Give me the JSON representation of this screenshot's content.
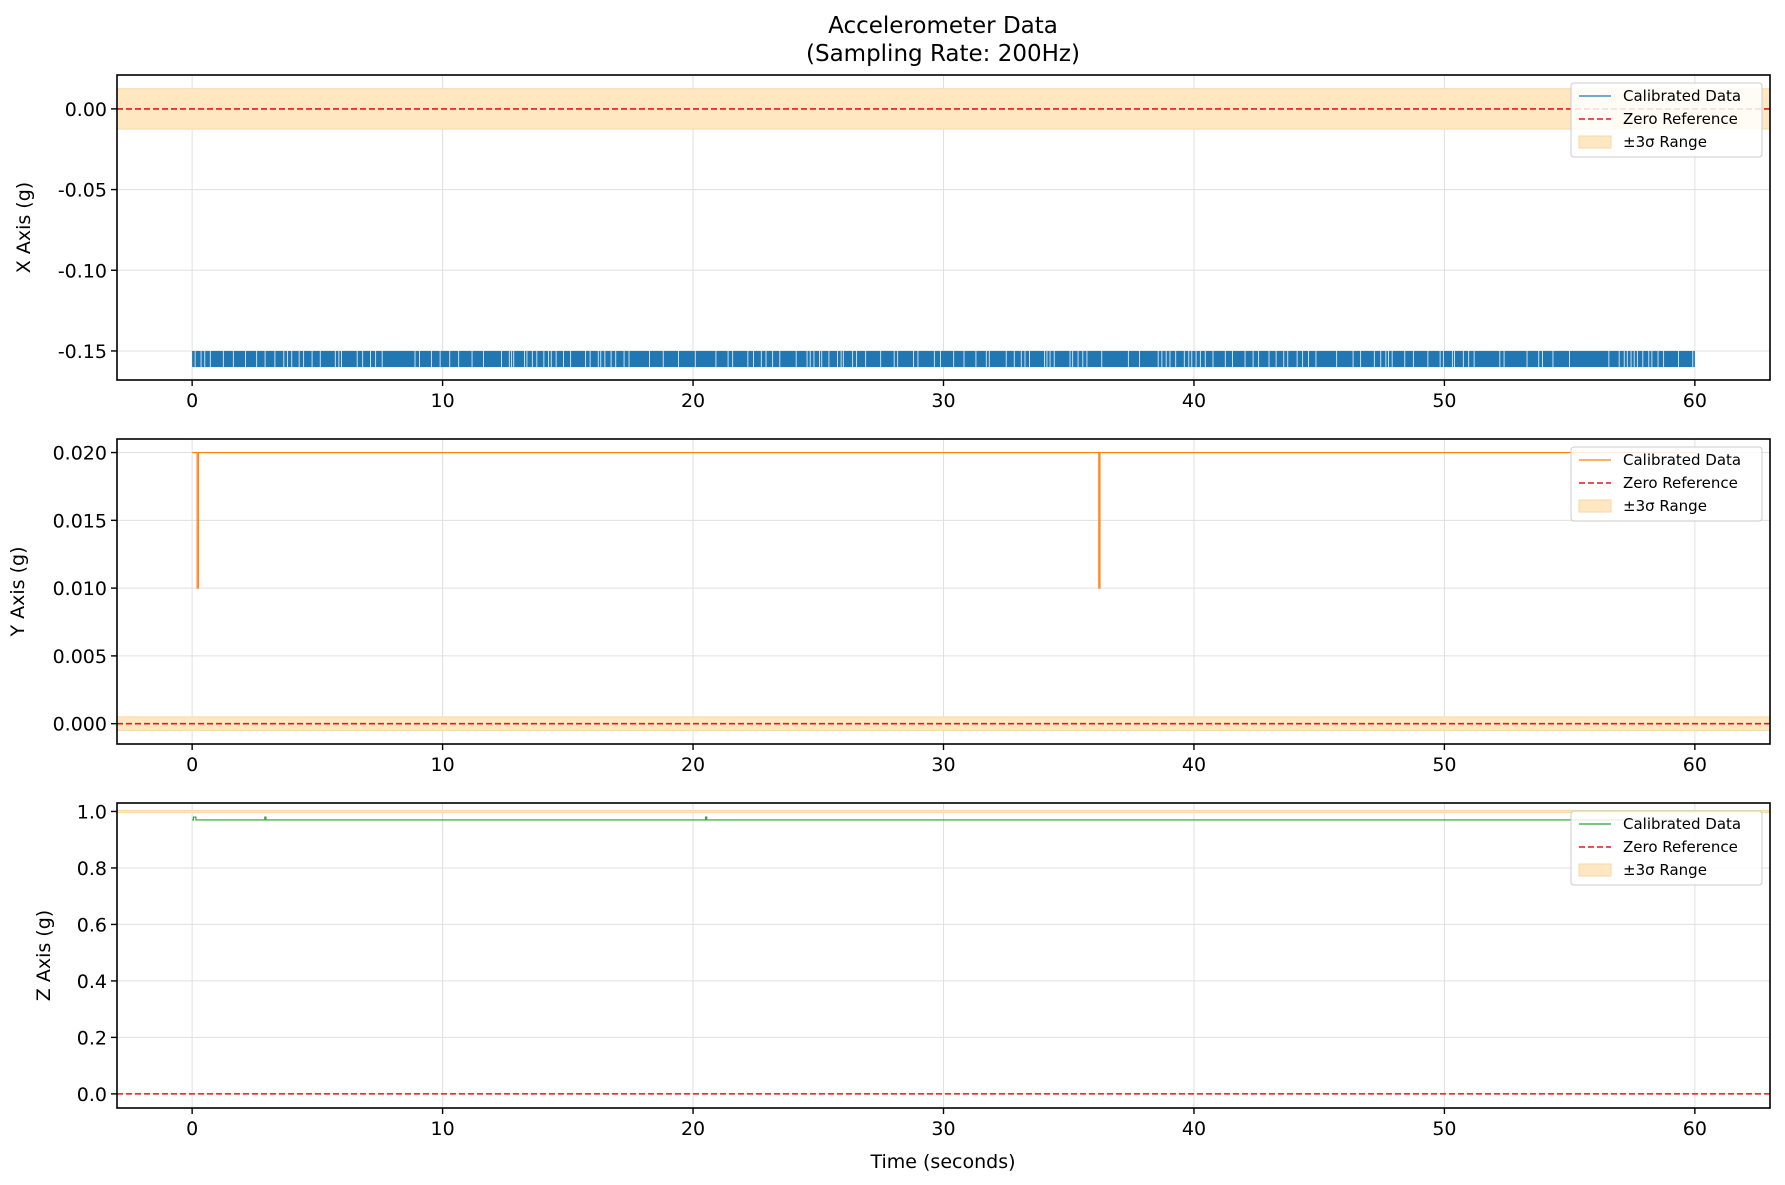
{
  "chart_data": {
    "title_lines": [
      "Accelerometer Data",
      "(Sampling Rate: 200Hz)"
    ],
    "xlabel": "Time (seconds)",
    "xlim": [
      -3,
      63
    ],
    "xticks": [
      0,
      10,
      20,
      30,
      40,
      50,
      60
    ],
    "x_tick_labels": [
      "0",
      "10",
      "20",
      "30",
      "40",
      "50",
      "60"
    ],
    "legend_labels": [
      "Calibrated Data",
      "Zero Reference",
      "±3σ Range"
    ],
    "legend_position": "top-right",
    "grid": true,
    "zero_reference_color": "#e41a1c",
    "band_color": "#ffe7c2",
    "panels": [
      {
        "type": "line",
        "ylabel": "X Axis (g)",
        "ylim": [
          -0.168,
          0.021
        ],
        "yticks": [
          0.0,
          -0.05,
          -0.1,
          -0.15
        ],
        "y_tick_labels": [
          "0.00",
          "-0.05",
          "-0.10",
          "-0.15"
        ],
        "sigma_band": [
          -0.0125,
          0.0125
        ],
        "zero_reference": 0,
        "series_color": "#1f77b4",
        "data_summary": "samples alternate between -0.15 and -0.16 over 0–60 s",
        "series": {
          "name": "Calibrated Data",
          "x_range": [
            0,
            60
          ],
          "levels": [
            -0.15,
            -0.16
          ],
          "style": "dense-toggle"
        }
      },
      {
        "type": "line",
        "ylabel": "Y Axis (g)",
        "ylim": [
          -0.0015,
          0.021
        ],
        "yticks": [
          0.0,
          0.005,
          0.01,
          0.015,
          0.02
        ],
        "y_tick_labels": [
          "0.000",
          "0.005",
          "0.010",
          "0.015",
          "0.020"
        ],
        "sigma_band": [
          -0.0005,
          0.0005
        ],
        "zero_reference": 0,
        "series_color": "#ff7f0e",
        "series": {
          "name": "Calibrated Data",
          "x": [
            0,
            0.2,
            0.2,
            0.25,
            0.25,
            36.2,
            36.2,
            36.25,
            36.25,
            60
          ],
          "y": [
            0.02,
            0.02,
            0.01,
            0.01,
            0.02,
            0.02,
            0.01,
            0.01,
            0.02,
            0.02
          ]
        }
      },
      {
        "type": "line",
        "ylabel": "Z Axis (g)",
        "ylim": [
          -0.05,
          1.03
        ],
        "yticks": [
          0.0,
          0.2,
          0.4,
          0.6,
          0.8,
          1.0
        ],
        "y_tick_labels": [
          "0.0",
          "0.2",
          "0.4",
          "0.6",
          "0.8",
          "1.0"
        ],
        "sigma_band": [
          0.9995,
          1.0005
        ],
        "zero_reference": 0,
        "series_color": "#2ca02c",
        "series": {
          "name": "Calibrated Data",
          "x": [
            0,
            0.05,
            0.05,
            0.15,
            0.15,
            2.9,
            2.9,
            2.95,
            2.95,
            20.5,
            20.5,
            20.55,
            20.55,
            60
          ],
          "y": [
            0.97,
            0.97,
            0.98,
            0.98,
            0.97,
            0.97,
            0.98,
            0.98,
            0.97,
            0.97,
            0.98,
            0.98,
            0.97,
            0.97
          ]
        }
      }
    ]
  }
}
